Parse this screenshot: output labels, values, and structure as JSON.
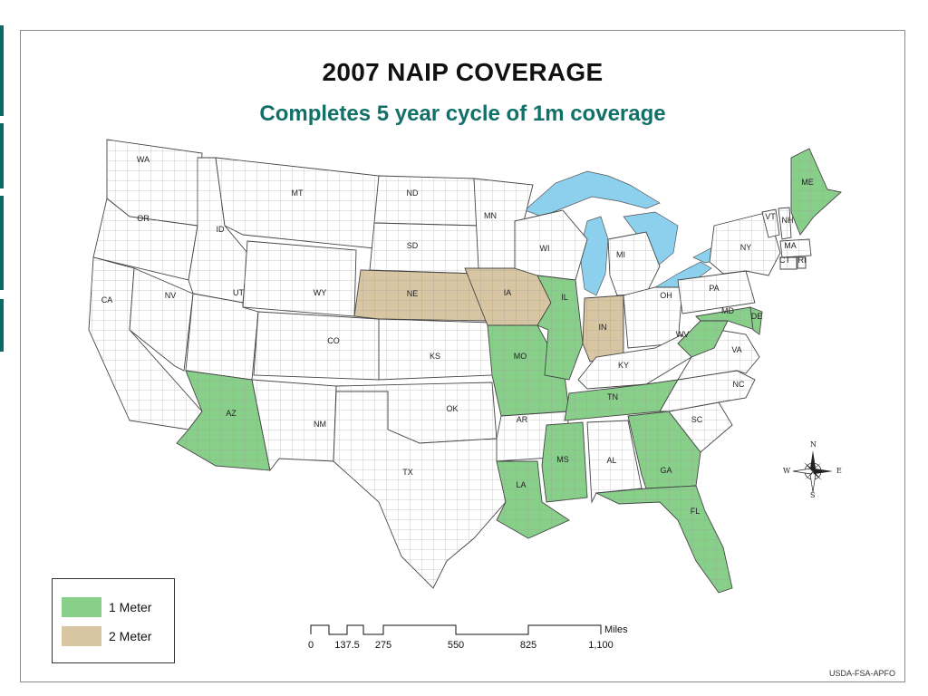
{
  "title": "2007 NAIP COVERAGE",
  "subtitle": "Completes 5 year cycle of 1m coverage",
  "colors": {
    "one_meter": "#88cf8a",
    "two_meter": "#d8c5a2",
    "water": "#8cd0ee",
    "title_green": "#127068",
    "border": "#7a7a7a"
  },
  "legend": {
    "items": [
      {
        "label": "1 Meter",
        "color": "#88cf8a"
      },
      {
        "label": "2 Meter",
        "color": "#d8c5a2"
      }
    ]
  },
  "scale": {
    "units": "Miles",
    "ticks": [
      "0",
      "137.5",
      "275",
      "550",
      "825",
      "1,100"
    ]
  },
  "compass": {
    "n": "N",
    "s": "S",
    "e": "E",
    "w": "W"
  },
  "credit": "USDA-FSA-APFO",
  "states": [
    {
      "abbr": "WA",
      "coverage": "none"
    },
    {
      "abbr": "OR",
      "coverage": "none"
    },
    {
      "abbr": "CA",
      "coverage": "none"
    },
    {
      "abbr": "ID",
      "coverage": "none"
    },
    {
      "abbr": "NV",
      "coverage": "none"
    },
    {
      "abbr": "MT",
      "coverage": "none"
    },
    {
      "abbr": "WY",
      "coverage": "none"
    },
    {
      "abbr": "UT",
      "coverage": "none"
    },
    {
      "abbr": "CO",
      "coverage": "none"
    },
    {
      "abbr": "AZ",
      "coverage": "1m"
    },
    {
      "abbr": "NM",
      "coverage": "none"
    },
    {
      "abbr": "ND",
      "coverage": "none"
    },
    {
      "abbr": "SD",
      "coverage": "none"
    },
    {
      "abbr": "NE",
      "coverage": "2m"
    },
    {
      "abbr": "KS",
      "coverage": "none"
    },
    {
      "abbr": "OK",
      "coverage": "none"
    },
    {
      "abbr": "TX",
      "coverage": "none"
    },
    {
      "abbr": "MN",
      "coverage": "none"
    },
    {
      "abbr": "IA",
      "coverage": "2m"
    },
    {
      "abbr": "MO",
      "coverage": "1m"
    },
    {
      "abbr": "AR",
      "coverage": "none"
    },
    {
      "abbr": "LA",
      "coverage": "1m"
    },
    {
      "abbr": "WI",
      "coverage": "none"
    },
    {
      "abbr": "IL",
      "coverage": "1m"
    },
    {
      "abbr": "MI",
      "coverage": "none"
    },
    {
      "abbr": "IN",
      "coverage": "2m"
    },
    {
      "abbr": "OH",
      "coverage": "none"
    },
    {
      "abbr": "KY",
      "coverage": "none"
    },
    {
      "abbr": "TN",
      "coverage": "1m"
    },
    {
      "abbr": "MS",
      "coverage": "1m"
    },
    {
      "abbr": "AL",
      "coverage": "none"
    },
    {
      "abbr": "GA",
      "coverage": "1m"
    },
    {
      "abbr": "FL",
      "coverage": "1m"
    },
    {
      "abbr": "SC",
      "coverage": "none"
    },
    {
      "abbr": "NC",
      "coverage": "none"
    },
    {
      "abbr": "VA",
      "coverage": "none"
    },
    {
      "abbr": "WV",
      "coverage": "1m"
    },
    {
      "abbr": "MD",
      "coverage": "1m"
    },
    {
      "abbr": "DE",
      "coverage": "1m"
    },
    {
      "abbr": "PA",
      "coverage": "none"
    },
    {
      "abbr": "NY",
      "coverage": "none"
    },
    {
      "abbr": "VT",
      "coverage": "none"
    },
    {
      "abbr": "NH",
      "coverage": "none"
    },
    {
      "abbr": "MA",
      "coverage": "none"
    },
    {
      "abbr": "CT",
      "coverage": "none"
    },
    {
      "abbr": "RI",
      "coverage": "none"
    },
    {
      "abbr": "ME",
      "coverage": "1m"
    }
  ]
}
